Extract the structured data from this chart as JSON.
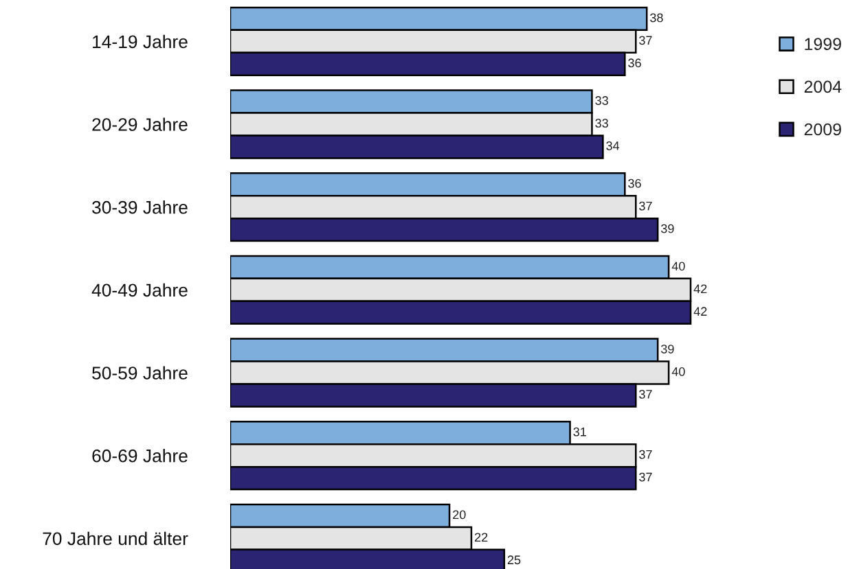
{
  "chart_data": {
    "type": "bar",
    "orientation": "horizontal",
    "categories": [
      "14-19 Jahre",
      "20-29 Jahre",
      "30-39 Jahre",
      "40-49 Jahre",
      "50-59 Jahre",
      "60-69 Jahre",
      "70 Jahre und älter"
    ],
    "series": [
      {
        "name": "1999",
        "color": "#7eaedc",
        "values": [
          38,
          33,
          36,
          40,
          39,
          31,
          20
        ]
      },
      {
        "name": "2004",
        "color": "#e4e4e4",
        "values": [
          37,
          33,
          37,
          42,
          40,
          37,
          22
        ]
      },
      {
        "name": "2009",
        "color": "#2b2472",
        "values": [
          36,
          34,
          39,
          42,
          37,
          37,
          25
        ]
      }
    ],
    "data_labels": true,
    "tick_labels": "y",
    "legend": "top right"
  }
}
